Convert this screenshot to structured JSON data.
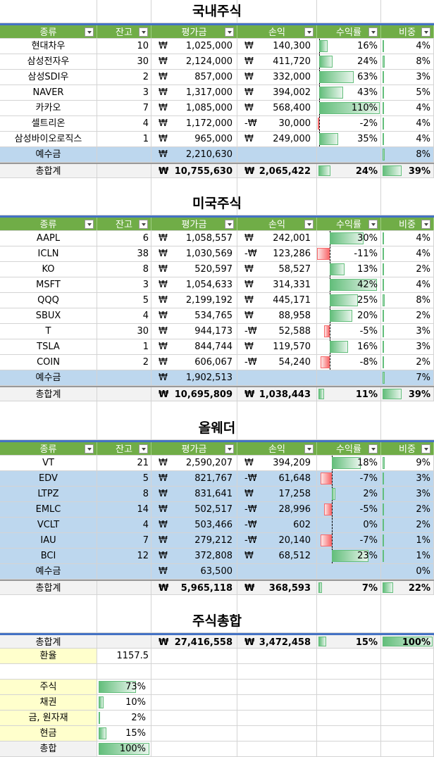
{
  "currency_symbol": "₩",
  "headers": [
    "종류",
    "잔고",
    "평가금",
    "손익",
    "수익률",
    "비중"
  ],
  "colors": {
    "header_green": "#70ad47",
    "header_border": "#4472c4",
    "highlight_blue": "#bdd7ee",
    "positive_bar": "#63be7b",
    "negative_bar": "#f8696b",
    "input_yellow": "#ffffcc"
  },
  "domestic": {
    "title": "국내주식",
    "rows": [
      {
        "name": "현대차우",
        "qty": "10",
        "value": "1,025,000",
        "neg": "",
        "pl": "140,300",
        "ret": "16%",
        "ret_v": 0.16,
        "weight": "4%",
        "w_v": 0.04,
        "blue": false
      },
      {
        "name": "삼성전자우",
        "qty": "30",
        "value": "2,124,000",
        "neg": "",
        "pl": "411,720",
        "ret": "24%",
        "ret_v": 0.24,
        "weight": "8%",
        "w_v": 0.08,
        "blue": false
      },
      {
        "name": "삼성SDI우",
        "qty": "2",
        "value": "857,000",
        "neg": "",
        "pl": "332,000",
        "ret": "63%",
        "ret_v": 0.63,
        "weight": "3%",
        "w_v": 0.03,
        "blue": false
      },
      {
        "name": "NAVER",
        "qty": "3",
        "value": "1,317,000",
        "neg": "",
        "pl": "394,002",
        "ret": "43%",
        "ret_v": 0.43,
        "weight": "5%",
        "w_v": 0.05,
        "blue": false
      },
      {
        "name": "카카오",
        "qty": "7",
        "value": "1,085,000",
        "neg": "",
        "pl": "568,400",
        "ret": "110%",
        "ret_v": 1.1,
        "weight": "4%",
        "w_v": 0.04,
        "blue": false
      },
      {
        "name": "셀트리온",
        "qty": "4",
        "value": "1,172,000",
        "neg": "-",
        "pl": "30,000",
        "ret": "-2%",
        "ret_v": -0.02,
        "weight": "4%",
        "w_v": 0.04,
        "blue": false
      },
      {
        "name": "삼성바이오로직스",
        "qty": "1",
        "value": "965,000",
        "neg": "",
        "pl": "249,000",
        "ret": "35%",
        "ret_v": 0.35,
        "weight": "4%",
        "w_v": 0.04,
        "blue": false
      }
    ],
    "cash": {
      "label": "예수금",
      "value": "2,210,630",
      "weight": "8%",
      "w_v": 0.08
    },
    "total": {
      "label": "총합계",
      "value": "10,755,630",
      "pl": "2,065,422",
      "ret": "24%",
      "ret_v": 0.24,
      "weight": "39%",
      "w_v": 0.39
    }
  },
  "us": {
    "title": "미국주식",
    "rows": [
      {
        "name": "AAPL",
        "qty": "6",
        "value": "1,058,557",
        "neg": "",
        "pl": "242,001",
        "ret": "30%",
        "ret_v": 0.3,
        "weight": "4%",
        "w_v": 0.04,
        "blue": false
      },
      {
        "name": "ICLN",
        "qty": "38",
        "value": "1,030,569",
        "neg": "-",
        "pl": "123,286",
        "ret": "-11%",
        "ret_v": -0.11,
        "weight": "4%",
        "w_v": 0.04,
        "blue": false
      },
      {
        "name": "KO",
        "qty": "8",
        "value": "520,597",
        "neg": "",
        "pl": "58,527",
        "ret": "13%",
        "ret_v": 0.13,
        "weight": "2%",
        "w_v": 0.02,
        "blue": false
      },
      {
        "name": "MSFT",
        "qty": "3",
        "value": "1,054,633",
        "neg": "",
        "pl": "314,331",
        "ret": "42%",
        "ret_v": 0.42,
        "weight": "4%",
        "w_v": 0.04,
        "blue": false
      },
      {
        "name": "QQQ",
        "qty": "5",
        "value": "2,199,192",
        "neg": "",
        "pl": "445,171",
        "ret": "25%",
        "ret_v": 0.25,
        "weight": "8%",
        "w_v": 0.08,
        "blue": false
      },
      {
        "name": "SBUX",
        "qty": "4",
        "value": "534,765",
        "neg": "",
        "pl": "88,958",
        "ret": "20%",
        "ret_v": 0.2,
        "weight": "2%",
        "w_v": 0.02,
        "blue": false
      },
      {
        "name": "T",
        "qty": "30",
        "value": "944,173",
        "neg": "-",
        "pl": "52,588",
        "ret": "-5%",
        "ret_v": -0.05,
        "weight": "3%",
        "w_v": 0.03,
        "blue": false
      },
      {
        "name": "TSLA",
        "qty": "1",
        "value": "844,744",
        "neg": "",
        "pl": "119,570",
        "ret": "16%",
        "ret_v": 0.16,
        "weight": "3%",
        "w_v": 0.03,
        "blue": false
      },
      {
        "name": "COIN",
        "qty": "2",
        "value": "606,067",
        "neg": "-",
        "pl": "54,240",
        "ret": "-8%",
        "ret_v": -0.08,
        "weight": "2%",
        "w_v": 0.02,
        "blue": false
      }
    ],
    "cash": {
      "label": "예수금",
      "value": "1,902,513",
      "weight": "7%",
      "w_v": 0.07
    },
    "total": {
      "label": "총합계",
      "value": "10,695,809",
      "pl": "1,038,443",
      "ret": "11%",
      "ret_v": 0.11,
      "weight": "39%",
      "w_v": 0.39
    }
  },
  "allweather": {
    "title": "올웨더",
    "rows": [
      {
        "name": "VT",
        "qty": "21",
        "value": "2,590,207",
        "neg": "",
        "pl": "394,209",
        "ret": "18%",
        "ret_v": 0.18,
        "weight": "9%",
        "w_v": 0.09,
        "blue": false
      },
      {
        "name": "EDV",
        "qty": "5",
        "value": "821,767",
        "neg": "-",
        "pl": "61,648",
        "ret": "-7%",
        "ret_v": -0.07,
        "weight": "3%",
        "w_v": 0.03,
        "blue": true
      },
      {
        "name": "LTPZ",
        "qty": "8",
        "value": "831,641",
        "neg": "",
        "pl": "17,258",
        "ret": "2%",
        "ret_v": 0.02,
        "weight": "3%",
        "w_v": 0.03,
        "blue": true
      },
      {
        "name": "EMLC",
        "qty": "14",
        "value": "502,517",
        "neg": "-",
        "pl": "28,996",
        "ret": "-5%",
        "ret_v": -0.05,
        "weight": "2%",
        "w_v": 0.02,
        "blue": true
      },
      {
        "name": "VCLT",
        "qty": "4",
        "value": "503,466",
        "neg": "-",
        "pl": "602",
        "ret": "0%",
        "ret_v": 0.0,
        "weight": "2%",
        "w_v": 0.02,
        "blue": true
      },
      {
        "name": "IAU",
        "qty": "7",
        "value": "279,212",
        "neg": "-",
        "pl": "20,140",
        "ret": "-7%",
        "ret_v": -0.07,
        "weight": "1%",
        "w_v": 0.01,
        "blue": true
      },
      {
        "name": "BCI",
        "qty": "12",
        "value": "372,808",
        "neg": "",
        "pl": "68,512",
        "ret": "23%",
        "ret_v": 0.23,
        "weight": "1%",
        "w_v": 0.01,
        "blue": true
      }
    ],
    "cash": {
      "label": "예수금",
      "value": "63,500",
      "weight": "0%",
      "w_v": 0.0
    },
    "total": {
      "label": "총합계",
      "value": "5,965,118",
      "pl": "368,593",
      "ret": "7%",
      "ret_v": 0.07,
      "weight": "22%",
      "w_v": 0.22
    }
  },
  "summary": {
    "title": "주식총합",
    "total": {
      "label": "총합계",
      "value": "27,416,558",
      "pl": "3,472,458",
      "ret": "15%",
      "ret_v": 0.15,
      "weight": "100%",
      "w_v": 1.0
    },
    "fx_label": "환율",
    "fx_value": "1157.5",
    "alloc": [
      {
        "label": "주식",
        "pct": "73%",
        "v": 0.73
      },
      {
        "label": "채권",
        "pct": "10%",
        "v": 0.1
      },
      {
        "label": "금, 원자재",
        "pct": "2%",
        "v": 0.02
      },
      {
        "label": "현금",
        "pct": "15%",
        "v": 0.15
      },
      {
        "label": "총합",
        "pct": "100%",
        "v": 1.0
      }
    ]
  }
}
